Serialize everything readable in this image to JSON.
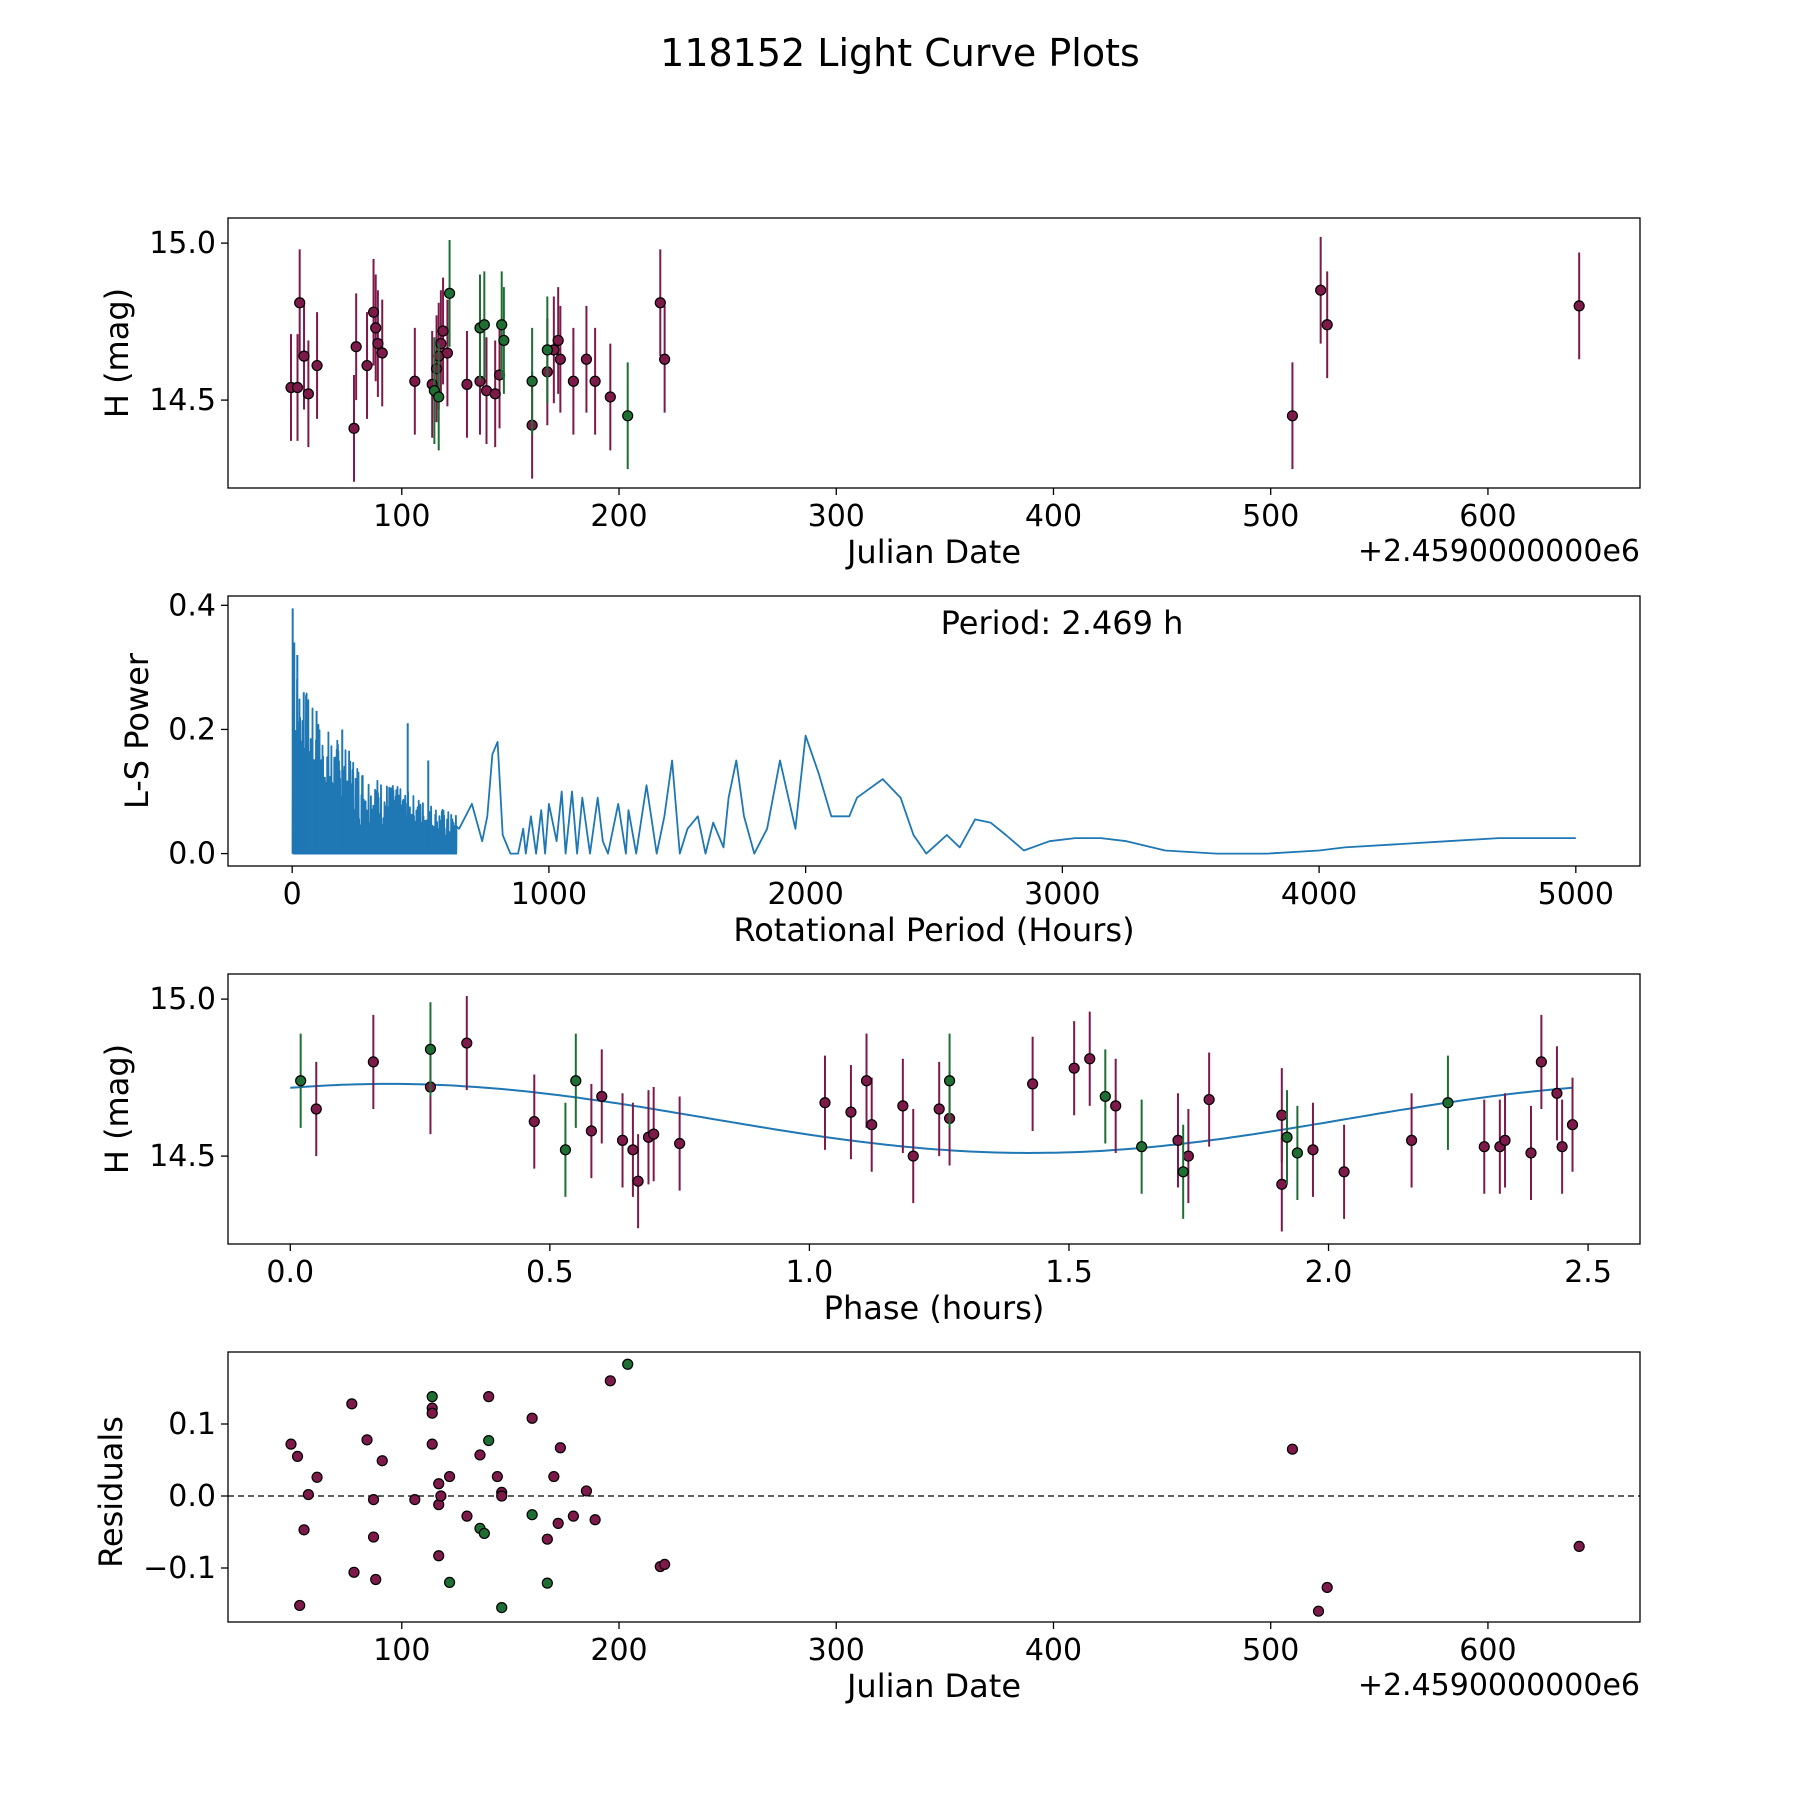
{
  "figure": {
    "title": "118152 Light Curve Plots"
  },
  "colors": {
    "primary": "#7d1a4a",
    "secondary": "#1f6e33",
    "curve": "#1f77b4",
    "edge": "#000000"
  },
  "chart_data": [
    {
      "id": "lightcurve",
      "type": "scatter",
      "title": "",
      "xlabel": "Julian Date",
      "ylabel": "H (mag)",
      "offset_label": "+2.4590000000e6",
      "xlim": [
        20,
        670
      ],
      "ylim": [
        14.22,
        15.08
      ],
      "xticks": [
        100,
        200,
        300,
        400,
        500,
        600
      ],
      "xtick_labels": [
        "100",
        "200",
        "300",
        "400",
        "500",
        "600"
      ],
      "yticks": [
        14.5,
        15.0
      ],
      "ytick_labels": [
        "14.5",
        "15.0"
      ],
      "err": 0.17,
      "series": [
        {
          "name": "primary",
          "color": "#7d1a4a",
          "x": [
            49,
            52,
            53,
            55,
            57,
            61,
            78,
            79,
            84,
            87,
            88,
            89,
            91,
            106,
            114,
            116,
            117,
            118,
            119,
            121,
            130,
            136,
            139,
            143,
            145,
            160,
            167,
            170,
            172,
            173,
            179,
            185,
            189,
            196,
            219,
            221,
            510,
            523,
            526,
            642
          ],
          "y": [
            14.54,
            14.54,
            14.81,
            14.64,
            14.52,
            14.61,
            14.41,
            14.67,
            14.61,
            14.78,
            14.73,
            14.68,
            14.65,
            14.56,
            14.55,
            14.6,
            14.64,
            14.68,
            14.72,
            14.65,
            14.55,
            14.56,
            14.53,
            14.52,
            14.58,
            14.42,
            14.59,
            14.66,
            14.69,
            14.63,
            14.56,
            14.63,
            14.56,
            14.51,
            14.81,
            14.63,
            14.45,
            14.85,
            14.74,
            14.8
          ]
        },
        {
          "name": "secondary",
          "color": "#1f6e33",
          "x": [
            115,
            117,
            122,
            136,
            138,
            146,
            147,
            160,
            167,
            204
          ],
          "y": [
            14.53,
            14.51,
            14.84,
            14.73,
            14.74,
            14.74,
            14.69,
            14.56,
            14.66,
            14.45
          ]
        }
      ]
    },
    {
      "id": "periodogram",
      "type": "line",
      "xlabel": "Rotational Period (Hours)",
      "ylabel": "L-S Power",
      "annotation": "Period: 2.469 h",
      "xlim": [
        -250,
        5250
      ],
      "ylim": [
        -0.02,
        0.415
      ],
      "xticks": [
        0,
        1000,
        2000,
        3000,
        4000,
        5000
      ],
      "xtick_labels": [
        "0",
        "1000",
        "2000",
        "3000",
        "4000",
        "5000"
      ],
      "yticks": [
        0.0,
        0.2,
        0.4
      ],
      "ytick_labels": [
        "0.0",
        "0.2",
        "0.4"
      ],
      "series": [
        {
          "name": "power",
          "color": "#1f77b4",
          "x": [
            650,
            700,
            740,
            760,
            780,
            800,
            820,
            850,
            880,
            900,
            910,
            930,
            950,
            970,
            985,
            1000,
            1030,
            1050,
            1065,
            1090,
            1110,
            1130,
            1160,
            1190,
            1210,
            1230,
            1270,
            1300,
            1310,
            1340,
            1380,
            1420,
            1450,
            1480,
            1510,
            1540,
            1580,
            1610,
            1640,
            1680,
            1700,
            1730,
            1760,
            1800,
            1850,
            1900,
            1960,
            2000,
            2050,
            2100,
            2170,
            2200,
            2300,
            2370,
            2420,
            2470,
            2510,
            2550,
            2600,
            2660,
            2720,
            2780,
            2850,
            2950,
            3050,
            3150,
            3250,
            3400,
            3600,
            3800,
            4000,
            4100,
            4300,
            4500,
            4700,
            4900,
            5000
          ],
          "y": [
            0.04,
            0.08,
            0.02,
            0.06,
            0.16,
            0.18,
            0.03,
            0.0,
            0.0,
            0.04,
            0.0,
            0.06,
            0.0,
            0.07,
            0.0,
            0.08,
            0.02,
            0.1,
            0.0,
            0.1,
            0.0,
            0.09,
            0.0,
            0.09,
            0.02,
            0.0,
            0.08,
            0.0,
            0.07,
            0.0,
            0.11,
            0.0,
            0.06,
            0.15,
            0.0,
            0.04,
            0.06,
            0.0,
            0.05,
            0.01,
            0.09,
            0.15,
            0.06,
            0.0,
            0.04,
            0.15,
            0.04,
            0.19,
            0.13,
            0.06,
            0.06,
            0.09,
            0.12,
            0.09,
            0.03,
            0.0,
            0.015,
            0.03,
            0.01,
            0.055,
            0.05,
            0.03,
            0.005,
            0.02,
            0.025,
            0.025,
            0.02,
            0.005,
            0.0,
            0.0,
            0.005,
            0.01,
            0.015,
            0.02,
            0.025,
            0.025,
            0.025
          ]
        }
      ]
    },
    {
      "id": "phased",
      "type": "scatter",
      "xlabel": "Phase (hours)",
      "ylabel": "H (mag)",
      "xlim": [
        -0.12,
        2.6
      ],
      "ylim": [
        14.22,
        15.08
      ],
      "xticks": [
        0.0,
        0.5,
        1.0,
        1.5,
        2.0,
        2.5
      ],
      "xtick_labels": [
        "0.0",
        "0.5",
        "1.0",
        "1.5",
        "2.0",
        "2.5"
      ],
      "yticks": [
        14.5,
        15.0
      ],
      "ytick_labels": [
        "14.5",
        "15.0"
      ],
      "err": 0.15,
      "fit": {
        "mean": 14.62,
        "amplitude": 0.11,
        "period": 2.469,
        "phase_max": 0.19,
        "color": "#1f77b4"
      },
      "series": [
        {
          "name": "primary",
          "color": "#7d1a4a",
          "x": [
            0.05,
            0.16,
            0.27,
            0.34,
            0.47,
            0.58,
            0.6,
            0.64,
            0.66,
            0.67,
            0.69,
            0.7,
            0.75,
            1.03,
            1.08,
            1.11,
            1.12,
            1.18,
            1.2,
            1.25,
            1.27,
            1.43,
            1.51,
            1.54,
            1.59,
            1.71,
            1.73,
            1.77,
            1.91,
            1.91,
            1.97,
            2.03,
            2.16,
            2.3,
            2.33,
            2.34,
            2.39,
            2.41,
            2.44,
            2.45,
            2.47
          ],
          "y": [
            14.65,
            14.8,
            14.72,
            14.86,
            14.61,
            14.58,
            14.69,
            14.55,
            14.52,
            14.42,
            14.56,
            14.57,
            14.54,
            14.67,
            14.64,
            14.74,
            14.6,
            14.66,
            14.5,
            14.65,
            14.62,
            14.73,
            14.78,
            14.81,
            14.66,
            14.55,
            14.5,
            14.68,
            14.63,
            14.41,
            14.52,
            14.45,
            14.55,
            14.53,
            14.53,
            14.55,
            14.51,
            14.8,
            14.7,
            14.53,
            14.6
          ]
        },
        {
          "name": "secondary",
          "color": "#1f6e33",
          "x": [
            0.02,
            0.27,
            0.53,
            0.55,
            1.27,
            1.57,
            1.64,
            1.72,
            1.92,
            1.94,
            2.23
          ],
          "y": [
            14.74,
            14.84,
            14.52,
            14.74,
            14.74,
            14.69,
            14.53,
            14.45,
            14.56,
            14.51,
            14.67
          ]
        }
      ]
    },
    {
      "id": "residuals",
      "type": "scatter",
      "xlabel": "Julian Date",
      "ylabel": "Residuals",
      "offset_label": "+2.4590000000e6",
      "xlim": [
        20,
        670
      ],
      "ylim": [
        -0.175,
        0.2
      ],
      "xticks": [
        100,
        200,
        300,
        400,
        500,
        600
      ],
      "xtick_labels": [
        "100",
        "200",
        "300",
        "400",
        "500",
        "600"
      ],
      "yticks": [
        -0.1,
        0.0,
        0.1
      ],
      "ytick_labels": [
        "−0.1",
        "0.0",
        "0.1"
      ],
      "zero_line": true,
      "series": [
        {
          "name": "primary",
          "color": "#7d1a4a",
          "x": [
            49,
            52,
            53,
            55,
            57,
            61,
            77,
            78,
            84,
            87,
            87,
            88,
            91,
            106,
            114,
            114,
            114,
            117,
            117,
            117,
            118,
            122,
            130,
            136,
            140,
            144,
            146,
            146,
            160,
            167,
            170,
            172,
            173,
            179,
            185,
            189,
            196,
            219,
            221,
            510,
            522,
            526,
            642
          ],
          "y": [
            0.072,
            0.055,
            -0.152,
            -0.047,
            0.002,
            0.026,
            0.128,
            -0.106,
            0.078,
            -0.005,
            -0.057,
            -0.116,
            0.049,
            -0.005,
            0.122,
            0.115,
            0.072,
            0.017,
            -0.012,
            -0.083,
            0.0,
            0.027,
            -0.028,
            0.057,
            0.138,
            0.027,
            0.005,
            0.0,
            0.108,
            -0.06,
            0.027,
            -0.038,
            0.067,
            -0.028,
            0.007,
            -0.033,
            0.16,
            -0.098,
            -0.095,
            0.065,
            -0.16,
            -0.127,
            -0.07
          ]
        },
        {
          "name": "secondary",
          "color": "#1f6e33",
          "x": [
            114,
            122,
            136,
            138,
            140,
            146,
            160,
            167,
            204
          ],
          "y": [
            0.138,
            -0.12,
            -0.045,
            -0.052,
            0.077,
            -0.155,
            -0.026,
            -0.121,
            0.183
          ]
        }
      ]
    }
  ]
}
